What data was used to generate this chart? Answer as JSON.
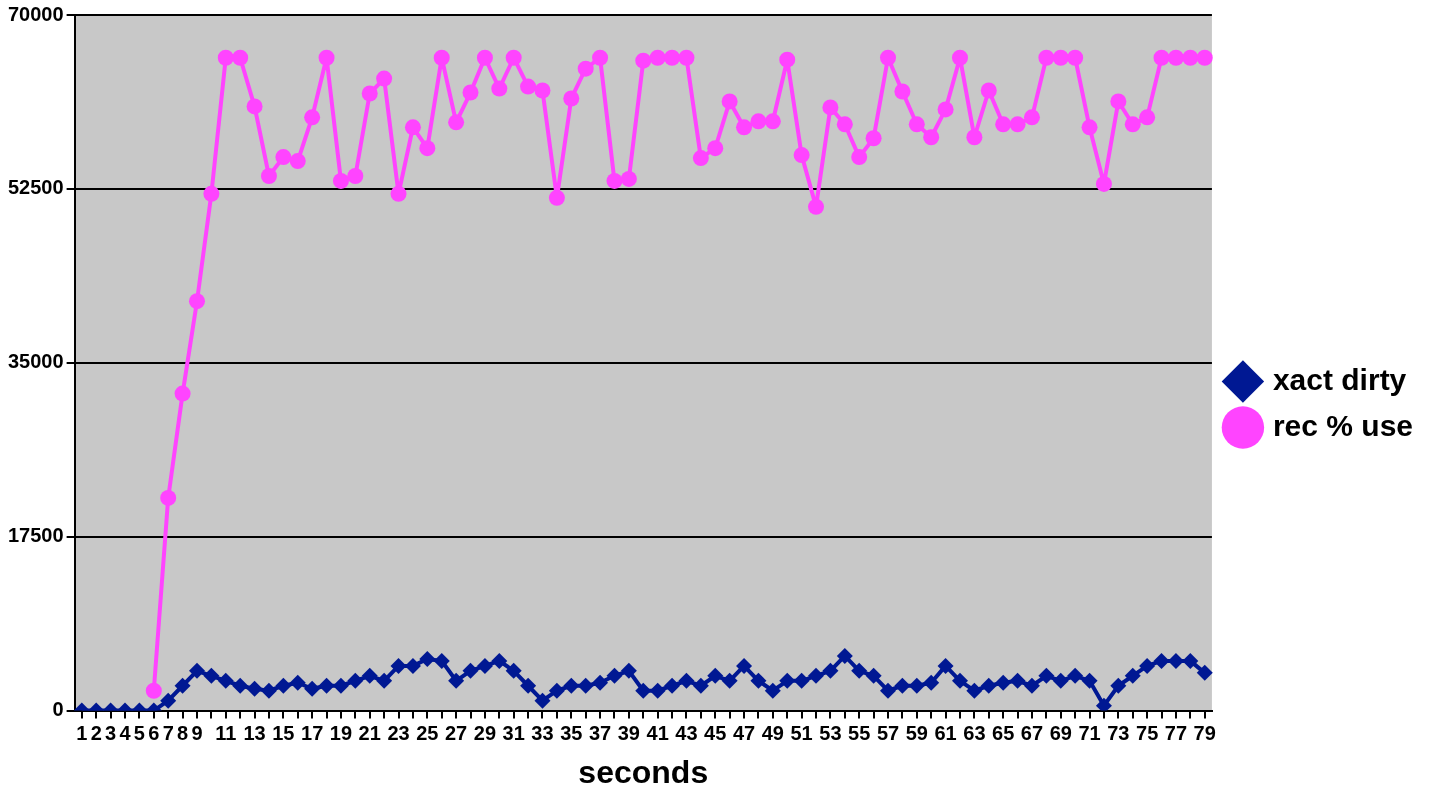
{
  "chart_data": {
    "type": "line",
    "xlabel": "seconds",
    "categories": [
      "1",
      "2",
      "3",
      "4",
      "5",
      "6",
      "7",
      "8",
      "9",
      null,
      "11",
      null,
      "13",
      null,
      "15",
      null,
      "17",
      null,
      "19",
      null,
      "21",
      null,
      "23",
      null,
      "25",
      null,
      "27",
      null,
      "29",
      null,
      "31",
      null,
      "33",
      null,
      "35",
      null,
      "37",
      null,
      "39",
      null,
      "41",
      null,
      "43",
      null,
      "45",
      null,
      "47",
      null,
      "49",
      null,
      "51",
      null,
      "53",
      null,
      "55",
      null,
      "57",
      null,
      "59",
      null,
      "61",
      null,
      "63",
      null,
      "65",
      null,
      "67",
      null,
      "69",
      null,
      "71",
      null,
      "73",
      null,
      "75",
      null,
      "77",
      null,
      "79"
    ],
    "series": [
      {
        "name": "xact dirty",
        "color": "#001893",
        "marker": "diamond",
        "values": [
          0,
          0,
          0,
          0,
          0,
          0,
          1000,
          2500,
          4000,
          3500,
          3000,
          2500,
          2200,
          2000,
          2500,
          2800,
          2200,
          2500,
          2500,
          3000,
          3500,
          3000,
          4500,
          4500,
          5200,
          5000,
          3000,
          4000,
          4500,
          5000,
          4000,
          2500,
          1000,
          2000,
          2500,
          2500,
          2800,
          3500,
          4000,
          2000,
          2000,
          2500,
          3000,
          2500,
          3500,
          3000,
          4500,
          3000,
          2000,
          3000,
          3000,
          3500,
          4000,
          5500,
          4000,
          3500,
          2000,
          2500,
          2500,
          2800,
          4500,
          3000,
          2000,
          2500,
          2800,
          3000,
          2500,
          3500,
          3000,
          3500,
          3000,
          500,
          2500,
          3500,
          4500,
          5000,
          5000,
          5000,
          3800
        ]
      },
      {
        "name": "rec % use",
        "color": "#ff44ff",
        "marker": "circle",
        "values": [
          null,
          null,
          null,
          null,
          null,
          2000,
          21400,
          31900,
          41200,
          52000,
          65700,
          65700,
          60800,
          53800,
          55700,
          55300,
          59700,
          65700,
          53300,
          53800,
          62100,
          63600,
          52000,
          58700,
          56600,
          65700,
          59200,
          62200,
          65700,
          62600,
          65700,
          62800,
          62400,
          51600,
          61600,
          64600,
          65700,
          53300,
          53500,
          65400,
          65700,
          65700,
          65700,
          55600,
          56600,
          61300,
          58700,
          59300,
          59300,
          65500,
          55900,
          50700,
          60700,
          59000,
          55700,
          57600,
          65700,
          62300,
          59000,
          57700,
          60500,
          65700,
          57700,
          62400,
          59000,
          59000,
          59700,
          65700,
          65700,
          65700,
          58700,
          53000,
          61300,
          59000,
          59700,
          65700,
          65700,
          65700,
          65700
        ]
      }
    ],
    "ylim": [
      0,
      70000
    ],
    "yticks": [
      0,
      17500,
      35000,
      52500,
      70000
    ],
    "grid": "y",
    "legend": "right",
    "line_style": "solid"
  }
}
